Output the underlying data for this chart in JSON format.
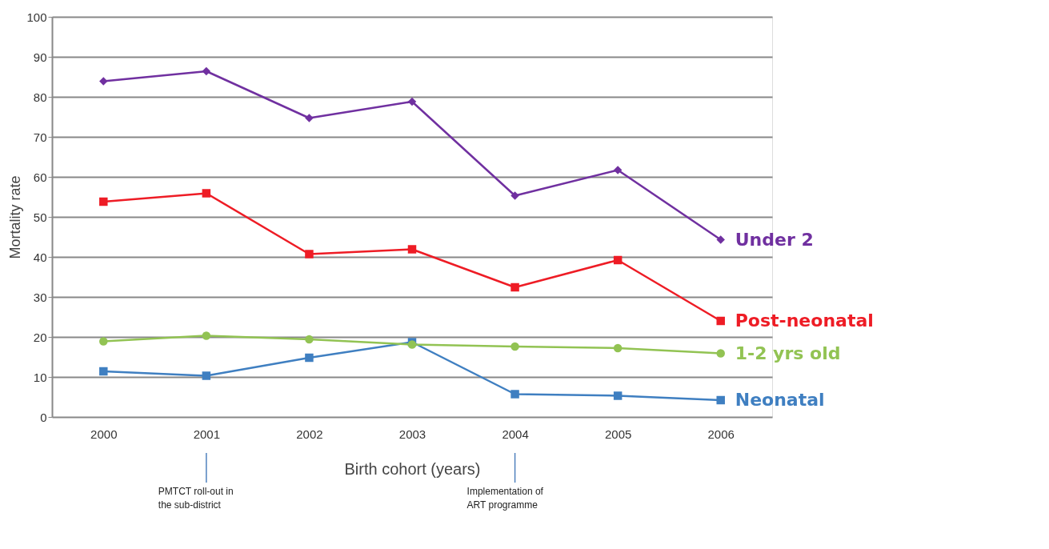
{
  "chart_data": {
    "type": "line",
    "xlabel": "Birth cohort (years)",
    "ylabel": "Mortality rate",
    "categories": [
      "2000",
      "2001",
      "2002",
      "2003",
      "2004",
      "2005",
      "2006"
    ],
    "series": [
      {
        "name": "Under 2",
        "color": "#7030a0",
        "marker": "diamond",
        "values": [
          83.9,
          86.4,
          74.7,
          78.8,
          55.3,
          61.7,
          44.3
        ]
      },
      {
        "name": "Post-neonatal",
        "color": "#ee1c25",
        "marker": "square",
        "values": [
          53.8,
          55.9,
          40.7,
          41.9,
          32.4,
          39.2,
          24.0
        ]
      },
      {
        "name": "1-2 yrs old",
        "color": "#92c353",
        "marker": "circle",
        "values": [
          18.9,
          20.3,
          19.4,
          18.1,
          17.6,
          17.2,
          15.9
        ]
      },
      {
        "name": "Neonatal",
        "color": "#3f7fc1",
        "marker": "square",
        "values": [
          11.4,
          10.3,
          14.8,
          18.7,
          5.7,
          5.3,
          4.2
        ]
      }
    ],
    "ylim": [
      0,
      100
    ],
    "yticks": [
      0,
      10,
      20,
      30,
      40,
      50,
      60,
      70,
      80,
      90,
      100
    ],
    "grid": "y",
    "line_style": "solid",
    "annotations": [
      "PMTCT roll-out in\nthe sub-district",
      "Implementation of\nART programme"
    ]
  }
}
